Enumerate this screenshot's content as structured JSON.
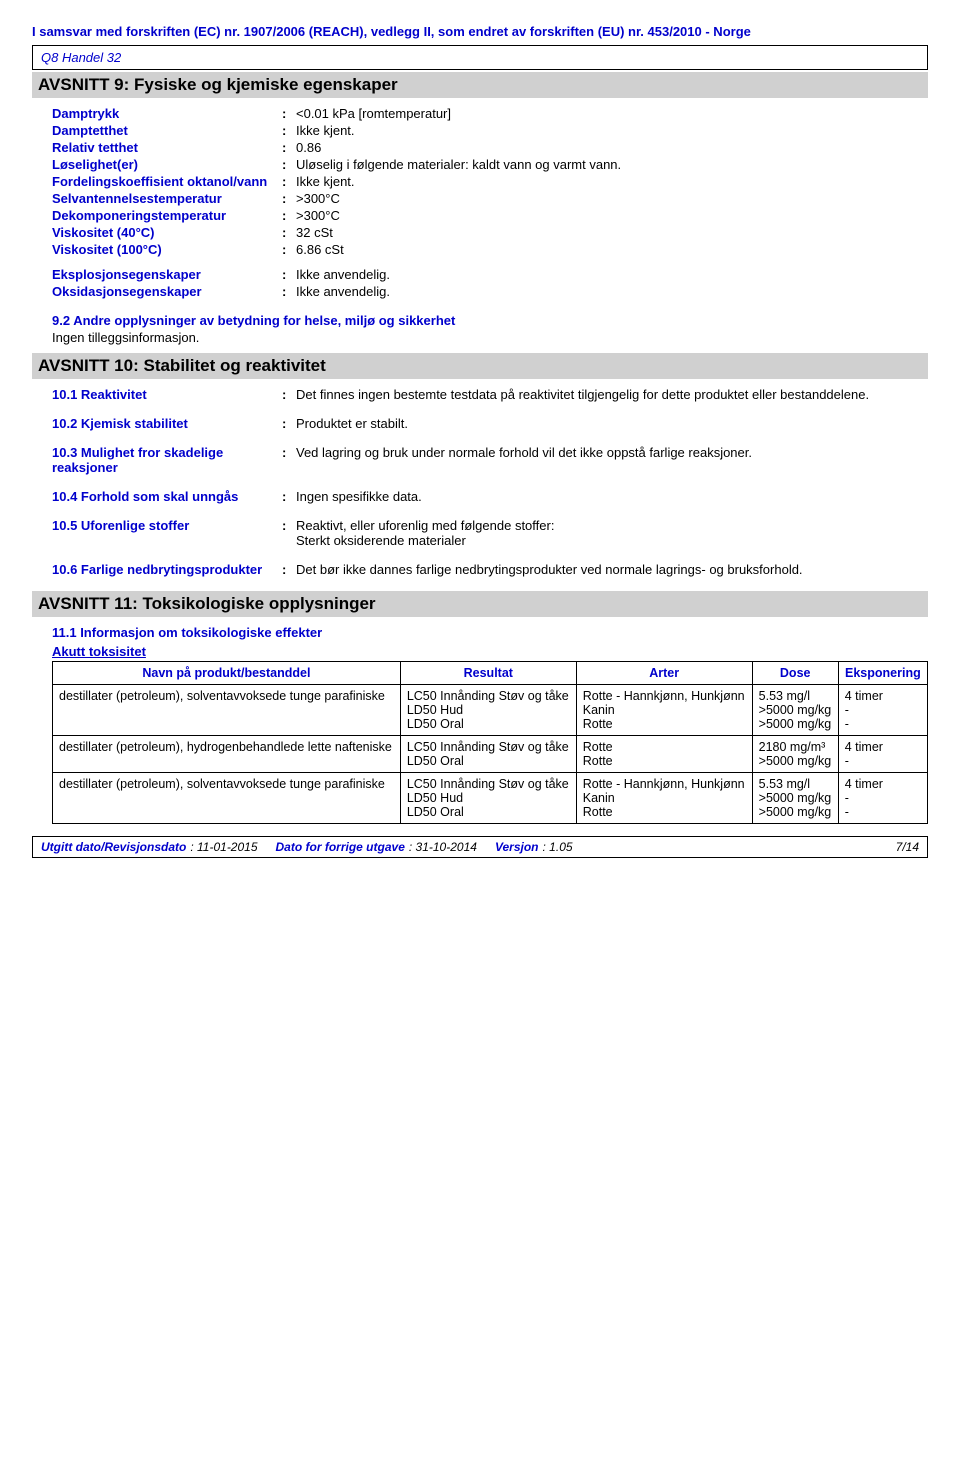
{
  "header": {
    "regulation": "I samsvar med forskriften (EC) nr. 1907/2006 (REACH), vedlegg II, som endret av forskriften (EU) nr. 453/2010 - Norge",
    "product": "Q8 Handel 32"
  },
  "section9": {
    "title": "AVSNITT 9: Fysiske og kjemiske egenskaper",
    "props": [
      {
        "label": "Damptrykk",
        "value": "<0.01 kPa [romtemperatur]"
      },
      {
        "label": "Damptetthet",
        "value": "Ikke kjent."
      },
      {
        "label": "Relativ tetthet",
        "value": "0.86"
      },
      {
        "label": "Løselighet(er)",
        "value": "Uløselig i følgende materialer: kaldt vann og varmt vann."
      },
      {
        "label": "Fordelingskoeffisient oktanol/vann",
        "value": "Ikke kjent."
      },
      {
        "label": "Selvantennelsestemperatur",
        "value": ">300°C"
      },
      {
        "label": "Dekomponeringstemperatur",
        "value": ">300°C"
      },
      {
        "label": "Viskositet (40°C)",
        "value": "32 cSt"
      },
      {
        "label": "Viskositet (100°C)",
        "value": "6.86 cSt"
      },
      {
        "label": "Eksplosjonsegenskaper",
        "value": "Ikke anvendelig."
      },
      {
        "label": "Oksidasjonsegenskaper",
        "value": "Ikke anvendelig."
      }
    ],
    "sub2_title": "9.2 Andre opplysninger av betydning for helse, miljø og sikkerhet",
    "sub2_body": "Ingen tilleggsinformasjon."
  },
  "section10": {
    "title": "AVSNITT 10: Stabilitet og reaktivitet",
    "items": [
      {
        "label": "10.1 Reaktivitet",
        "value": "Det finnes ingen bestemte testdata på reaktivitet tilgjengelig for dette produktet eller bestanddelene."
      },
      {
        "label": "10.2 Kjemisk stabilitet",
        "value": "Produktet er stabilt."
      },
      {
        "label": "10.3 Mulighet fror skadelige reaksjoner",
        "value": "Ved lagring og bruk under normale forhold vil det ikke oppstå farlige reaksjoner."
      },
      {
        "label": "10.4 Forhold som skal unngås",
        "value": "Ingen spesifikke data."
      },
      {
        "label": "10.5 Uforenlige stoffer",
        "value": "Reaktivt, eller uforenlig med følgende stoffer:\nSterkt oksiderende materialer"
      },
      {
        "label": "10.6 Farlige nedbrytingsprodukter",
        "value": "Det bør ikke dannes farlige nedbrytingsprodukter ved normale lagrings- og bruksforhold."
      }
    ]
  },
  "section11": {
    "title": "AVSNITT 11: Toksikologiske opplysninger",
    "sub1_title": "11.1 Informasjon om toksikologiske effekter",
    "acute_title": "Akutt toksisitet",
    "columns": [
      "Navn på produkt/bestanddel",
      "Resultat",
      "Arter",
      "Dose",
      "Eksponering"
    ],
    "rows": [
      [
        "destillater (petroleum), solventavvoksede tunge parafiniske",
        "LC50 Innånding Støv og tåke",
        "Rotte - Hannkjønn, Hunkjønn",
        "5.53 mg/l",
        "4 timer"
      ],
      [
        "",
        "LD50 Hud",
        "Kanin",
        ">5000 mg/kg",
        "-"
      ],
      [
        "",
        "LD50 Oral",
        "Rotte",
        ">5000 mg/kg",
        "-"
      ],
      [
        "destillater (petroleum), hydrogenbehandlede lette nafteniske",
        "LC50 Innånding Støv og tåke",
        "Rotte",
        "2180 mg/m³",
        "4 timer"
      ],
      [
        "",
        "LD50 Oral",
        "Rotte",
        ">5000 mg/kg",
        "-"
      ],
      [
        "destillater (petroleum), solventavvoksede tunge parafiniske",
        "LC50 Innånding Støv og tåke",
        "Rotte - Hannkjønn, Hunkjønn",
        "5.53 mg/l",
        "4 timer"
      ],
      [
        "",
        "LD50 Hud",
        "Kanin",
        ">5000 mg/kg",
        "-"
      ],
      [
        "",
        "LD50 Oral",
        "Rotte",
        ">5000 mg/kg",
        "-"
      ]
    ]
  },
  "footer": {
    "issued_label": "Utgitt dato/Revisjonsdato",
    "issued_value": ": 11-01-2015",
    "prev_label": "Dato for forrige utgave",
    "prev_value": ": 31-10-2014",
    "ver_label": "Versjon",
    "ver_value": ": 1.05",
    "page": "7/14"
  }
}
